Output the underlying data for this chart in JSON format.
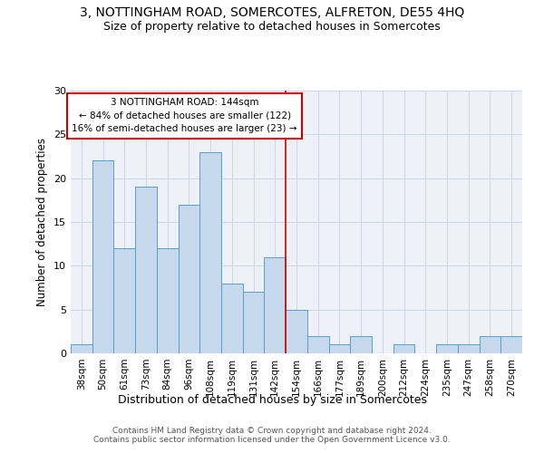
{
  "title": "3, NOTTINGHAM ROAD, SOMERCOTES, ALFRETON, DE55 4HQ",
  "subtitle": "Size of property relative to detached houses in Somercotes",
  "xlabel": "Distribution of detached houses by size in Somercotes",
  "ylabel": "Number of detached properties",
  "categories": [
    "38sqm",
    "50sqm",
    "61sqm",
    "73sqm",
    "84sqm",
    "96sqm",
    "108sqm",
    "119sqm",
    "131sqm",
    "142sqm",
    "154sqm",
    "166sqm",
    "177sqm",
    "189sqm",
    "200sqm",
    "212sqm",
    "224sqm",
    "235sqm",
    "247sqm",
    "258sqm",
    "270sqm"
  ],
  "values": [
    1,
    22,
    12,
    19,
    12,
    17,
    23,
    8,
    7,
    11,
    5,
    2,
    1,
    2,
    0,
    1,
    0,
    1,
    1,
    2,
    2
  ],
  "bar_color": "#c5d8ec",
  "bar_edge_color": "#5a9ec8",
  "property_line_x": 9.5,
  "property_label": "3 NOTTINGHAM ROAD: 144sqm",
  "annotation_line1": "← 84% of detached houses are smaller (122)",
  "annotation_line2": "16% of semi-detached houses are larger (23) →",
  "annotation_box_color": "#cc0000",
  "vline_color": "#cc0000",
  "grid_color": "#ccd6e8",
  "background_color": "#eef2f8",
  "ylim": [
    0,
    30
  ],
  "yticks": [
    0,
    5,
    10,
    15,
    20,
    25,
    30
  ],
  "footer": "Contains HM Land Registry data © Crown copyright and database right 2024.\nContains public sector information licensed under the Open Government Licence v3.0.",
  "title_fontsize": 10,
  "subtitle_fontsize": 9,
  "footer_fontsize": 6.5
}
